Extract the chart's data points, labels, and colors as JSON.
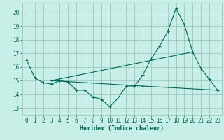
{
  "title": "",
  "xlabel": "Humidex (Indice chaleur)",
  "ylabel": "",
  "xlim": [
    -0.5,
    23.5
  ],
  "ylim": [
    12.5,
    20.7
  ],
  "yticks": [
    13,
    14,
    15,
    16,
    17,
    18,
    19,
    20
  ],
  "xticks": [
    0,
    1,
    2,
    3,
    4,
    5,
    6,
    7,
    8,
    9,
    10,
    11,
    12,
    13,
    14,
    15,
    16,
    17,
    18,
    19,
    20,
    21,
    22,
    23
  ],
  "bg_color": "#c8eee8",
  "grid_color": "#a0ccc4",
  "line_color": "#006655",
  "line1_x": [
    0,
    1,
    2,
    3,
    4,
    5,
    6,
    7,
    8,
    9,
    10,
    11,
    12,
    13,
    14,
    15,
    16,
    17,
    18,
    19,
    20,
    21,
    22,
    23
  ],
  "line1_y": [
    16.5,
    15.2,
    14.85,
    14.75,
    15.0,
    14.9,
    14.3,
    14.3,
    13.8,
    13.65,
    13.1,
    13.7,
    14.6,
    14.6,
    15.4,
    16.6,
    17.5,
    18.6,
    20.3,
    19.1,
    17.1,
    15.9,
    15.1,
    14.3
  ],
  "line2_x": [
    3,
    14,
    23
  ],
  "line2_y": [
    15.0,
    14.6,
    14.3
  ],
  "line3_x": [
    3,
    20
  ],
  "line3_y": [
    15.0,
    17.1
  ],
  "font_family": "monospace",
  "xlabel_fontsize": 6.0,
  "tick_fontsize": 5.5
}
